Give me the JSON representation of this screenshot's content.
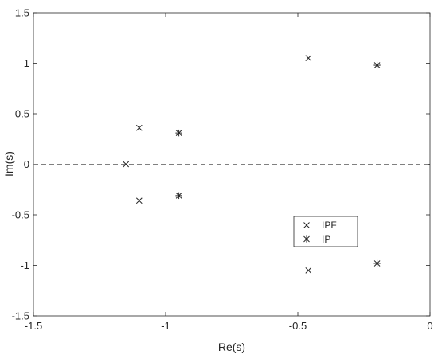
{
  "chart_data": {
    "type": "scatter",
    "xlabel": "Re(s)",
    "ylabel": "Im(s)",
    "xlim": [
      -1.5,
      0
    ],
    "ylim": [
      -1.5,
      1.5
    ],
    "xticks": [
      -1.5,
      -1,
      -0.5,
      0
    ],
    "xtick_labels": [
      "-1.5",
      "-1",
      "-0.5",
      "0"
    ],
    "yticks": [
      -1.5,
      -1,
      -0.5,
      0,
      0.5,
      1,
      1.5
    ],
    "ytick_labels": [
      "-1.5",
      "-1",
      "-0.5",
      "0",
      "0.5",
      "1",
      "1.5"
    ],
    "grid": false,
    "reference_line": {
      "y": 0,
      "style": "dashed"
    },
    "legend": {
      "position": "lower-right",
      "entries": [
        "IPF",
        "IP"
      ]
    },
    "series": [
      {
        "name": "IPF",
        "marker": "x",
        "color": "#262626",
        "x": [
          -1.15,
          -1.1,
          -1.1,
          -0.46,
          -0.46
        ],
        "y": [
          0,
          0.36,
          -0.36,
          1.05,
          -1.05
        ]
      },
      {
        "name": "IP",
        "marker": "asterisk",
        "color": "#262626",
        "x": [
          -0.95,
          -0.95,
          -0.2,
          -0.2
        ],
        "y": [
          0.31,
          -0.31,
          0.98,
          -0.98
        ]
      }
    ]
  }
}
